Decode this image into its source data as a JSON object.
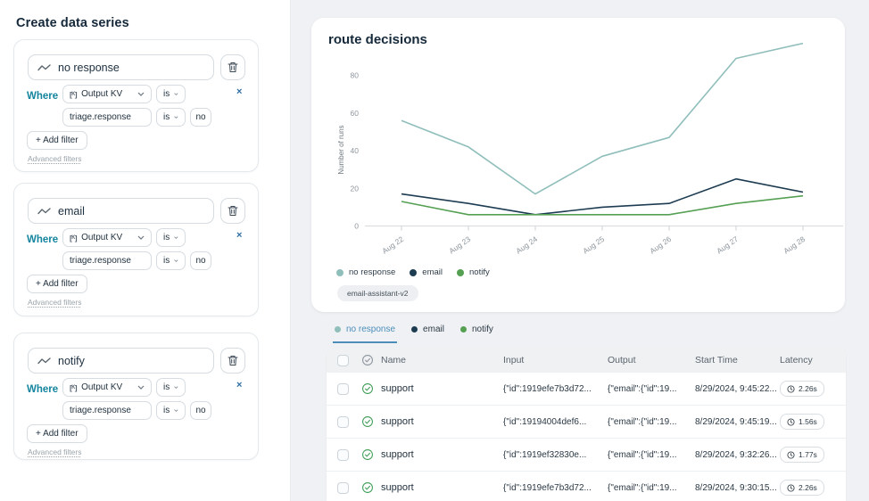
{
  "left_panel": {
    "title": "Create data series",
    "where_label": "Where",
    "field_dropdown": "Output KV",
    "kv_icon": "[ᴷ]",
    "operator_is": "is",
    "key_field": "triage.response",
    "value": "no",
    "close_icon": "×",
    "add_filter_label": "+ Add filter",
    "advanced_filters_label": "Advanced filters",
    "cards": [
      {
        "name": "no response"
      },
      {
        "name": "email"
      },
      {
        "name": "notify"
      }
    ]
  },
  "chart_data": {
    "type": "line",
    "title": "route decisions",
    "xlabel": "",
    "ylabel": "Number of runs",
    "categories": [
      "Aug 22",
      "Aug 23",
      "Aug 24",
      "Aug 25",
      "Aug 26",
      "Aug 27",
      "Aug 28"
    ],
    "yticks": [
      0,
      20,
      40,
      60,
      80
    ],
    "ylim": [
      0,
      100
    ],
    "grid": false,
    "legend_position": "bottom",
    "series": [
      {
        "name": "no response",
        "color": "#8fbebb",
        "values": [
          56,
          42,
          17,
          37,
          47,
          89,
          97
        ]
      },
      {
        "name": "email",
        "color": "#1d3c51",
        "values": [
          17,
          12,
          6,
          10,
          12,
          25,
          18
        ]
      },
      {
        "name": "notify",
        "color": "#55a053",
        "values": [
          13,
          6,
          6,
          6,
          6,
          12,
          16
        ]
      }
    ],
    "badge": "email-assistant-v2"
  },
  "tabs": [
    {
      "label": "no response",
      "active": true
    },
    {
      "label": "email",
      "active": false
    },
    {
      "label": "notify",
      "active": false
    }
  ],
  "table": {
    "headers": {
      "name": "Name",
      "input": "Input",
      "output": "Output",
      "start_time": "Start Time",
      "latency": "Latency"
    },
    "rows": [
      {
        "name": "support",
        "input": "{\"id\":1919efe7b3d72...",
        "output": "{\"email\":{\"id\":19...",
        "start_time": "8/29/2024, 9:45:22...",
        "latency": "2.26s"
      },
      {
        "name": "support",
        "input": "{\"id\":19194004def6...",
        "output": "{\"email\":{\"id\":19...",
        "start_time": "8/29/2024, 9:45:19...",
        "latency": "1.56s"
      },
      {
        "name": "support",
        "input": "{\"id\":1919ef32830e...",
        "output": "{\"email\":{\"id\":19...",
        "start_time": "8/29/2024, 9:32:26...",
        "latency": "1.77s"
      },
      {
        "name": "support",
        "input": "{\"id\":1919efe7b3d72...",
        "output": "{\"email\":{\"id\":19...",
        "start_time": "8/29/2024, 9:30:15...",
        "latency": "2.26s"
      }
    ]
  }
}
